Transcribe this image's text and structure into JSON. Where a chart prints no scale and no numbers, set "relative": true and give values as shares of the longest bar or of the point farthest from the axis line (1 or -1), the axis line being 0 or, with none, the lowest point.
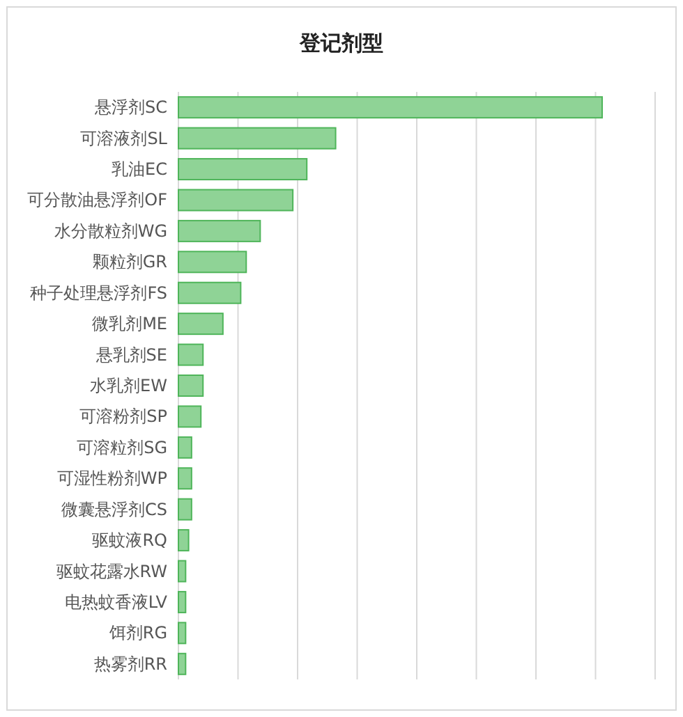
{
  "chart_data": {
    "type": "bar",
    "orientation": "horizontal",
    "relative": true,
    "title": "登记剂型",
    "grid": "x",
    "color": "#8fd396",
    "categories": [
      "悬浮剂SC",
      "可溶液剂SL",
      "乳油EC",
      "可分散油悬浮剂OF",
      "水分散粒剂WG",
      "颗粒剂GR",
      "种子处理悬浮剂FS",
      "微乳剂ME",
      "悬乳剂SE",
      "水乳剂EW",
      "可溶粉剂SP",
      "可溶粒剂SG",
      "可湿性粉剂WP",
      "微囊悬浮剂CS",
      "驱蚊液RQ",
      "驱蚊花露水RW",
      "电热蚊香液LV",
      "饵剂RG",
      "热雾剂RR"
    ],
    "values": [
      1,
      0.371,
      0.303,
      0.27,
      0.193,
      0.16,
      0.147,
      0.105,
      0.058,
      0.058,
      0.053,
      0.031,
      0.031,
      0.031,
      0.024,
      0.017,
      0.017,
      0.017,
      0.017
    ]
  }
}
